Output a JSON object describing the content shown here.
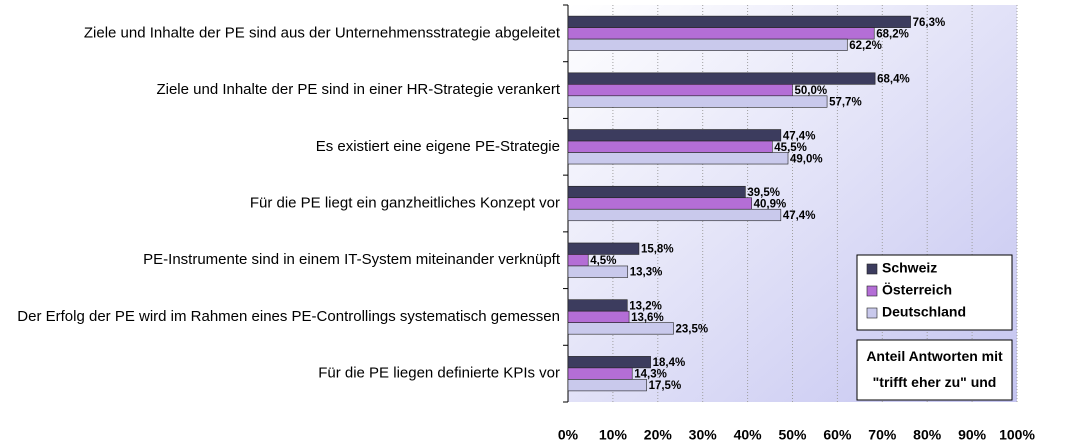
{
  "chart_data": {
    "type": "hbar",
    "categories": [
      "Ziele und Inhalte der PE sind aus der Unternehmensstrategie abgeleitet",
      "Ziele und Inhalte der PE sind in einer HR-Strategie verankert",
      "Es existiert eine eigene PE-Strategie",
      "Für die PE liegt ein ganzheitliches Konzept vor",
      "PE-Instrumente sind in einem IT-System miteinander verknüpft",
      "Der Erfolg der PE wird im Rahmen eines PE-Controllings systematisch gemessen",
      "Für die PE liegen definierte KPIs vor"
    ],
    "series": [
      {
        "name": "Schweiz",
        "color": "#3c3c5e",
        "values": [
          76.3,
          68.4,
          47.4,
          39.5,
          15.8,
          13.2,
          18.4
        ],
        "value_labels": [
          "76,3%",
          "68,4%",
          "47,4%",
          "39,5%",
          "15,8%",
          "13,2%",
          "18,4%"
        ]
      },
      {
        "name": "Österreich",
        "color": "#b46ed6",
        "values": [
          68.2,
          50.0,
          45.5,
          40.9,
          4.5,
          13.6,
          14.3
        ],
        "value_labels": [
          "68,2%",
          "50,0%",
          "45,5%",
          "40,9%",
          "4,5%",
          "13,6%",
          "14,3%"
        ]
      },
      {
        "name": "Deutschland",
        "color": "#c9c9ec",
        "values": [
          62.2,
          57.7,
          49.0,
          47.4,
          13.3,
          23.5,
          17.5
        ],
        "value_labels": [
          "62,2%",
          "57,7%",
          "49,0%",
          "47,4%",
          "13,3%",
          "23,5%",
          "17,5%"
        ]
      }
    ],
    "xlim": [
      0,
      100
    ],
    "xticks": [
      {
        "value": 0,
        "label": "0%"
      },
      {
        "value": 10,
        "label": "10%"
      },
      {
        "value": 20,
        "label": "20%"
      },
      {
        "value": 30,
        "label": "30%"
      },
      {
        "value": 40,
        "label": "40%"
      },
      {
        "value": 50,
        "label": "50%"
      },
      {
        "value": 60,
        "label": "60%"
      },
      {
        "value": 70,
        "label": "70%"
      },
      {
        "value": 80,
        "label": "80%"
      },
      {
        "value": 90,
        "label": "90%"
      },
      {
        "value": 100,
        "label": "100%"
      }
    ],
    "grid": true,
    "legend": "lower right",
    "annotation": "Anteil Antworten mit \"trifft eher zu\" und"
  }
}
